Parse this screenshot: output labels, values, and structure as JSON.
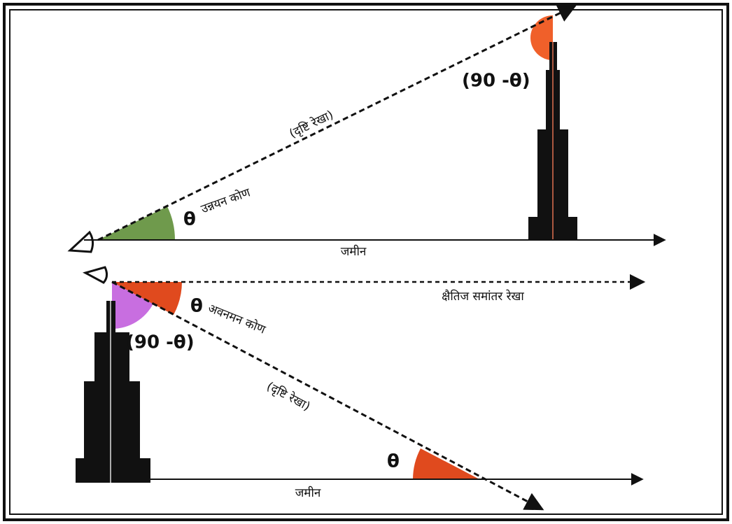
{
  "top_diagram": {
    "sight_line_label": "(दृष्टि रेखा)",
    "theta": "θ",
    "angle_label": "उन्नयन कोण",
    "complement_label": "(90 -θ)",
    "ground_label": "जमीन"
  },
  "bottom_diagram": {
    "horizontal_label": "क्षैतिज समांतर रेखा",
    "theta_top": "θ",
    "angle_label": "अवनमन कोण",
    "complement_label": "(90 -θ)",
    "sight_line_label": "(दृष्टि रेखा)",
    "theta_bottom": "θ",
    "ground_label": "जमीन"
  }
}
